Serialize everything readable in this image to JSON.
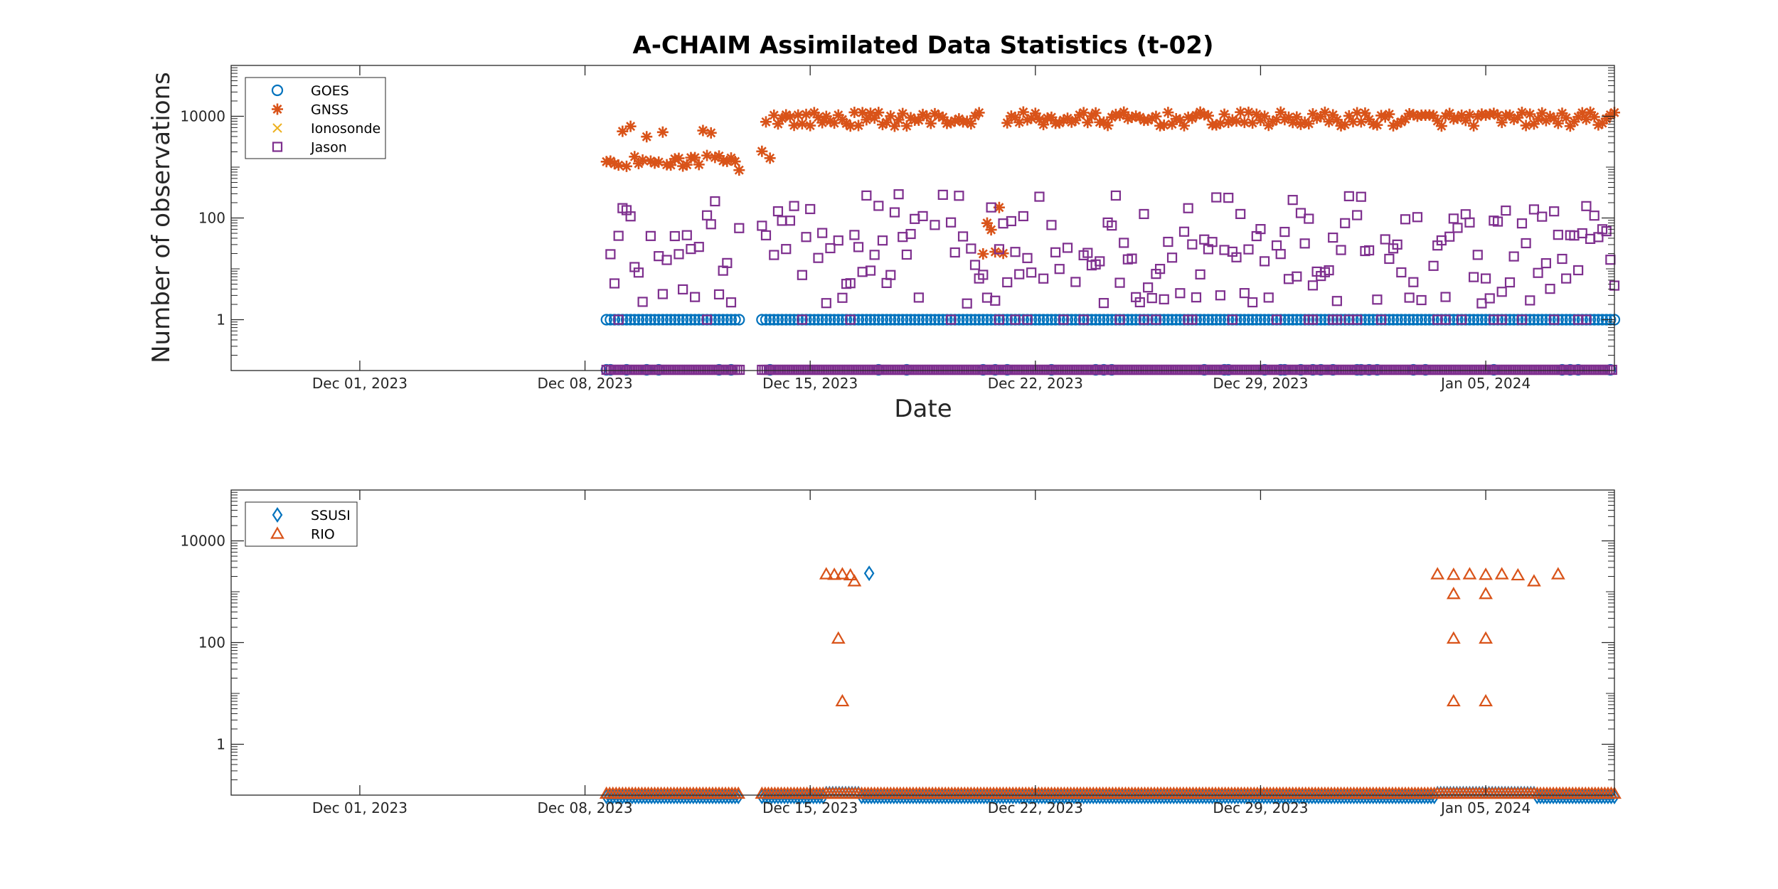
{
  "chart_data": [
    {
      "type": "scatter",
      "title": "A-CHAIM Assimilated Data Statistics (t-02)",
      "xlabel": "Date",
      "ylabel": "Number of observations",
      "yscale": "log",
      "ylim": [
        0.1,
        100000
      ],
      "xlim": [
        "2023-11-27",
        "2024-01-09"
      ],
      "x_ticks": [
        "2023-12-01",
        "2023-12-08",
        "2023-12-15",
        "2023-12-22",
        "2023-12-29",
        "2024-01-05"
      ],
      "x_tick_labels": [
        "Dec 01, 2023",
        "Dec 08, 2023",
        "Dec 15, 2023",
        "Dec 22, 2023",
        "Dec 29, 2023",
        "Jan 05, 2024"
      ],
      "y_ticks": [
        1,
        100,
        10000
      ],
      "y_tick_labels": [
        "1",
        "100",
        "10000"
      ],
      "grid": false,
      "legend": "top-left",
      "series": [
        {
          "name": "GOES",
          "marker": "circle",
          "color": "#0072BD",
          "periods": [
            [
              "2023-12-08 16:00",
              "2023-12-12 20:00"
            ],
            [
              "2023-12-13 12:00",
              "2024-01-09"
            ]
          ],
          "typical": 1,
          "dropouts_y": 0.1
        },
        {
          "name": "GNSS",
          "marker": "asterisk",
          "color": "#D95319",
          "periods": [
            [
              "2023-12-08 16:00",
              "2023-12-12 20:00"
            ],
            [
              "2023-12-13 12:00",
              "2024-01-09"
            ]
          ],
          "typical_first_period": [
            1000,
            1700
          ],
          "high_first_period": 5000,
          "typical": 8800,
          "dip": {
            "period": [
              "2023-12-20 08:00",
              "2023-12-21 00:00"
            ],
            "range": [
              18,
              2000
            ]
          }
        },
        {
          "name": "Ionosonde",
          "marker": "x",
          "color": "#EDB120",
          "values": []
        },
        {
          "name": "Jason",
          "marker": "square",
          "color": "#7E2F8E",
          "periods": [
            [
              "2023-12-08 16:00",
              "2023-12-12 20:00"
            ],
            [
              "2023-12-13 12:00",
              "2024-01-09"
            ]
          ],
          "range": [
            2,
            300
          ],
          "dropouts_y": 0.1
        }
      ]
    },
    {
      "type": "scatter",
      "yscale": "log",
      "ylim": [
        0.1,
        100000
      ],
      "xlim": [
        "2023-11-27",
        "2024-01-09"
      ],
      "x_ticks": [
        "2023-12-01",
        "2023-12-08",
        "2023-12-15",
        "2023-12-22",
        "2023-12-29",
        "2024-01-05"
      ],
      "x_tick_labels": [
        "Dec 01, 2023",
        "Dec 08, 2023",
        "Dec 15, 2023",
        "Dec 22, 2023",
        "Dec 29, 2023",
        "Jan 05, 2024"
      ],
      "y_ticks": [
        1,
        100,
        10000
      ],
      "y_tick_labels": [
        "1",
        "100",
        "10000"
      ],
      "grid": false,
      "legend": "top-left",
      "series": [
        {
          "name": "SSUSI",
          "marker": "diamond",
          "color": "#0072BD",
          "baseline_y": 0.1,
          "points": [
            {
              "x": "2023-12-16 20:00",
              "y": 2300
            }
          ]
        },
        {
          "name": "RIO",
          "marker": "triangle",
          "color": "#D95319",
          "baseline_y": 0.1,
          "points": [
            {
              "x": "2023-12-15 12:00",
              "y": 2200
            },
            {
              "x": "2023-12-15 18:00",
              "y": 2150
            },
            {
              "x": "2023-12-16 00:00",
              "y": 2200
            },
            {
              "x": "2023-12-16 06:00",
              "y": 2100
            },
            {
              "x": "2023-12-15 21:00",
              "y": 120
            },
            {
              "x": "2023-12-16 00:00",
              "y": 7
            },
            {
              "x": "2023-12-16 09:00",
              "y": 1600
            },
            {
              "x": "2024-01-03 12:00",
              "y": 2200
            },
            {
              "x": "2024-01-04 00:00",
              "y": 2150
            },
            {
              "x": "2024-01-04 12:00",
              "y": 2200
            },
            {
              "x": "2024-01-05 00:00",
              "y": 2150
            },
            {
              "x": "2024-01-05 12:00",
              "y": 2200
            },
            {
              "x": "2024-01-06 00:00",
              "y": 2100
            },
            {
              "x": "2024-01-04 00:00",
              "y": 900
            },
            {
              "x": "2024-01-04 00:00",
              "y": 120
            },
            {
              "x": "2024-01-04 00:00",
              "y": 7
            },
            {
              "x": "2024-01-05 00:00",
              "y": 900
            },
            {
              "x": "2024-01-05 00:00",
              "y": 120
            },
            {
              "x": "2024-01-05 00:00",
              "y": 7
            },
            {
              "x": "2024-01-06 12:00",
              "y": 1600
            },
            {
              "x": "2024-01-07 06:00",
              "y": 2200
            }
          ]
        }
      ]
    }
  ]
}
